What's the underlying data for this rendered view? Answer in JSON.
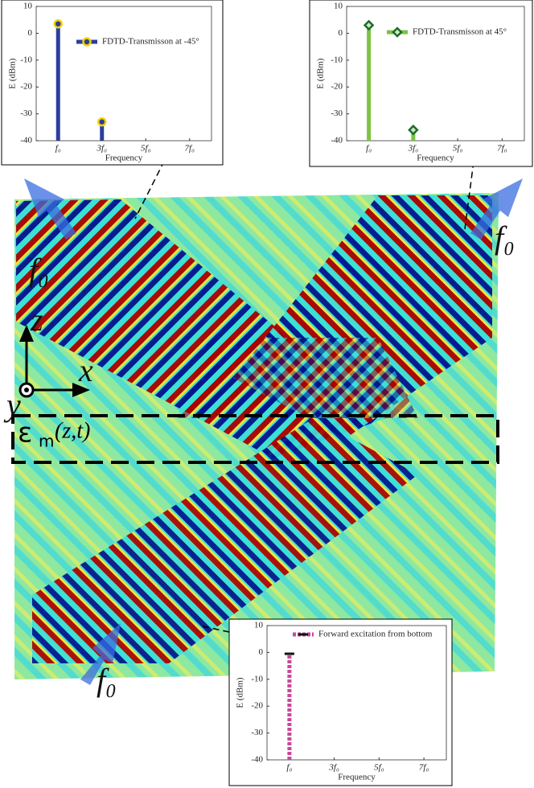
{
  "annotations": {
    "source_top_left": "f₀",
    "output_top_right": "f₀",
    "source_bottom": "f₀",
    "axis_z": "z",
    "axis_x": "x",
    "axis_y": "y",
    "epsilon": "ε",
    "epsilon_sub": "m",
    "epsilon_args": "(z,t)"
  },
  "chart_data": [
    {
      "type": "stem",
      "ylabel": "E (dBm)",
      "xlabel": "Frequency",
      "x": [
        1,
        3
      ],
      "xlim": [
        0,
        8
      ],
      "ylim": [
        -40,
        10
      ],
      "xticks": [
        {
          "value": 1,
          "label": "f₀"
        },
        {
          "value": 3,
          "label": "3f₀"
        },
        {
          "value": 5,
          "label": "5f₀"
        },
        {
          "value": 7,
          "label": "7f₀"
        }
      ],
      "yticks": [
        10,
        0,
        -10,
        -20,
        -30,
        -40
      ],
      "series": [
        {
          "name": "FDTD-Transmisson at -45°",
          "color": "#2b3f9a",
          "edge": "#f2d200",
          "marker": "circle",
          "values": [
            3.5,
            -33
          ]
        }
      ]
    },
    {
      "type": "stem",
      "ylabel": "E (dBm)",
      "xlabel": "Frequency",
      "x": [
        1,
        3
      ],
      "xlim": [
        0,
        8
      ],
      "ylim": [
        -40,
        10
      ],
      "xticks": [
        {
          "value": 1,
          "label": "f₀"
        },
        {
          "value": 3,
          "label": "3f₀"
        },
        {
          "value": 5,
          "label": "5f₀"
        },
        {
          "value": 7,
          "label": "7f₀"
        }
      ],
      "yticks": [
        10,
        0,
        -10,
        -20,
        -30,
        -40
      ],
      "series": [
        {
          "name": "FDTD-Transmisson at 45°",
          "color": "#7cc242",
          "edge": "#1d6b2c",
          "marker": "diamond",
          "values": [
            3,
            -36
          ]
        }
      ]
    },
    {
      "type": "stem",
      "ylabel": "E (dBm)",
      "xlabel": "Frequency",
      "x": [
        1
      ],
      "xlim": [
        0,
        8
      ],
      "ylim": [
        -40,
        10
      ],
      "xticks": [
        {
          "value": 1,
          "label": "f₀"
        },
        {
          "value": 3,
          "label": "3f₀"
        },
        {
          "value": 5,
          "label": "5f₀"
        },
        {
          "value": 7,
          "label": "7f₀"
        }
      ],
      "yticks": [
        10,
        0,
        -10,
        -20,
        -30,
        -40
      ],
      "series": [
        {
          "name": "Forward excitation from bottom",
          "color": "#c8489a",
          "edge": "#111111",
          "marker": "bar",
          "dashed": true,
          "values": [
            -0.5
          ]
        }
      ]
    }
  ]
}
